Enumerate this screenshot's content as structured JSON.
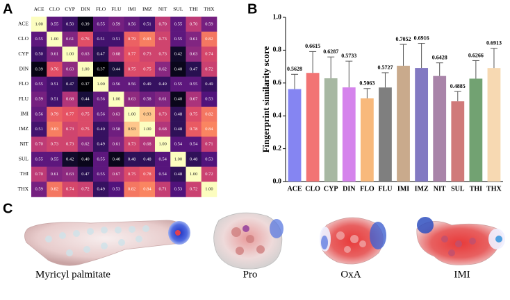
{
  "panels": {
    "a": "A",
    "b": "B",
    "c": "C"
  },
  "chart_data": [
    {
      "type": "heatmap",
      "categories": [
        "ACE",
        "CLO",
        "CYP",
        "DIN",
        "FLO",
        "FLU",
        "IMI",
        "IMZ",
        "NIT",
        "SUL",
        "THI",
        "THX"
      ],
      "values": [
        [
          1.0,
          0.55,
          0.5,
          0.39,
          0.55,
          0.59,
          0.56,
          0.51,
          0.7,
          0.55,
          0.7,
          0.59
        ],
        [
          0.55,
          1.0,
          0.61,
          0.76,
          0.51,
          0.51,
          0.79,
          0.83,
          0.73,
          0.55,
          0.61,
          0.82
        ],
        [
          0.5,
          0.61,
          1.0,
          0.63,
          0.47,
          0.68,
          0.77,
          0.73,
          0.73,
          0.42,
          0.63,
          0.74
        ],
        [
          0.39,
          0.76,
          0.63,
          1.0,
          0.37,
          0.44,
          0.75,
          0.75,
          0.62,
          0.4,
          0.47,
          0.72
        ],
        [
          0.55,
          0.51,
          0.47,
          0.37,
          1.0,
          0.56,
          0.56,
          0.49,
          0.49,
          0.55,
          0.55,
          0.49
        ],
        [
          0.59,
          0.51,
          0.68,
          0.44,
          0.56,
          1.0,
          0.63,
          0.58,
          0.61,
          0.4,
          0.67,
          0.53
        ],
        [
          0.56,
          0.79,
          0.77,
          0.75,
          0.56,
          0.63,
          1.0,
          0.93,
          0.73,
          0.48,
          0.75,
          0.82
        ],
        [
          0.51,
          0.83,
          0.73,
          0.75,
          0.49,
          0.58,
          0.93,
          1.0,
          0.68,
          0.48,
          0.78,
          0.84
        ],
        [
          0.7,
          0.73,
          0.73,
          0.62,
          0.49,
          0.61,
          0.73,
          0.68,
          1.0,
          0.54,
          0.54,
          0.71
        ],
        [
          0.55,
          0.55,
          0.42,
          0.4,
          0.55,
          0.4,
          0.48,
          0.48,
          0.54,
          1.0,
          0.48,
          0.53
        ],
        [
          0.7,
          0.61,
          0.63,
          0.47,
          0.55,
          0.67,
          0.75,
          0.78,
          0.54,
          0.48,
          1.0,
          0.72
        ],
        [
          0.59,
          0.82,
          0.74,
          0.72,
          0.49,
          0.53,
          0.82,
          0.84,
          0.71,
          0.53,
          0.72,
          1.0
        ]
      ],
      "value_labels": [
        [
          "1.00",
          "0.55",
          "0.50",
          "0.39",
          "0.55",
          "0.59",
          "0.56",
          "0.51",
          "0.70",
          "0.55",
          "0.70",
          "0.59"
        ],
        [
          "0.55",
          "1.00",
          "0.61",
          "0.76",
          "0.51",
          "0.51",
          "0.79",
          "0.83",
          "0.73",
          "0.55",
          "0.61",
          "0.82"
        ],
        [
          "0.50",
          "0.61",
          "1.00",
          "0.63",
          "0.47",
          "0.68",
          "0.77",
          "0.73",
          "0.73",
          "0.42",
          "0.63",
          "0.74"
        ],
        [
          "0.39",
          "0.76",
          "0.63",
          "1.00",
          "0.37",
          "0.44",
          "0.75",
          "0.75",
          "0.62",
          "0.40",
          "0.47",
          "0.72"
        ],
        [
          "0.55",
          "0.51",
          "0.47",
          "0.37",
          "1.00",
          "0.56",
          "0.56",
          "0.49",
          "0.49",
          "0.55",
          "0.55",
          "0.49"
        ],
        [
          "0.59",
          "0.51",
          "0.68",
          "0.44",
          "0.56",
          "1.00",
          "0.63",
          "0.58",
          "0.61",
          "0.40",
          "0.67",
          "0.53"
        ],
        [
          "0.56",
          "0.79",
          "0.77",
          "0.75",
          "0.56",
          "0.63",
          "1.00",
          "0.93",
          "0.73",
          "0.48",
          "0.75",
          "0.82"
        ],
        [
          "0.51",
          "0.83",
          "0.73",
          "0.75",
          "0.49",
          "0.58",
          "0.93",
          "1.00",
          "0.68",
          "0.48",
          "0.78",
          "0.84"
        ],
        [
          "0.70",
          "0.73",
          "0.73",
          "0.62",
          "0.49",
          "0.61",
          "0.73",
          "0.68",
          "1.00",
          "0.54",
          "0.54",
          "0.71"
        ],
        [
          "0.55",
          "0.55",
          "0.42",
          "0.40",
          "0.55",
          "0.40",
          "0.48",
          "0.48",
          "0.54",
          "1.00",
          "0.48",
          "0.53"
        ],
        [
          "0.70",
          "0.61",
          "0.63",
          "0.47",
          "0.55",
          "0.67",
          "0.75",
          "0.78",
          "0.54",
          "0.48",
          "1.00",
          "0.72"
        ],
        [
          "0.59",
          "0.82",
          "0.74",
          "0.72",
          "0.49",
          "0.53",
          "0.82",
          "0.84",
          "0.71",
          "0.53",
          "0.72",
          "1.00"
        ]
      ]
    },
    {
      "type": "bar",
      "y_label": "Fingerprint similarity score",
      "categories": [
        "ACE",
        "CLO",
        "CYP",
        "DIN",
        "FLO",
        "FLU",
        "IMI",
        "IMZ",
        "NIT",
        "SUL",
        "THI",
        "THX"
      ],
      "values": [
        0.5628,
        0.6615,
        0.6287,
        0.5733,
        0.5063,
        0.5727,
        0.7052,
        0.6916,
        0.6428,
        0.4885,
        0.6266,
        0.6913
      ],
      "errors": [
        0.09,
        0.13,
        0.13,
        0.16,
        0.06,
        0.09,
        0.13,
        0.15,
        0.08,
        0.06,
        0.11,
        0.12
      ],
      "colors": [
        "#8585f2",
        "#f27474",
        "#a7b8a2",
        "#d584ec",
        "#f8b97c",
        "#7f7f7f",
        "#c9aa8c",
        "#8279c2",
        "#a984a9",
        "#d07a7a",
        "#72a272",
        "#f7d9b2"
      ],
      "ylim": [
        0,
        1
      ],
      "yticks": [
        {
          "value": 0,
          "label": "0.0"
        },
        0.2,
        0.4,
        0.6,
        0.8,
        {
          "value": 1,
          "label": "1.0"
        }
      ]
    }
  ],
  "molecules": [
    "Myricyl palmitate",
    "Pro",
    "OxA",
    "IMI"
  ]
}
